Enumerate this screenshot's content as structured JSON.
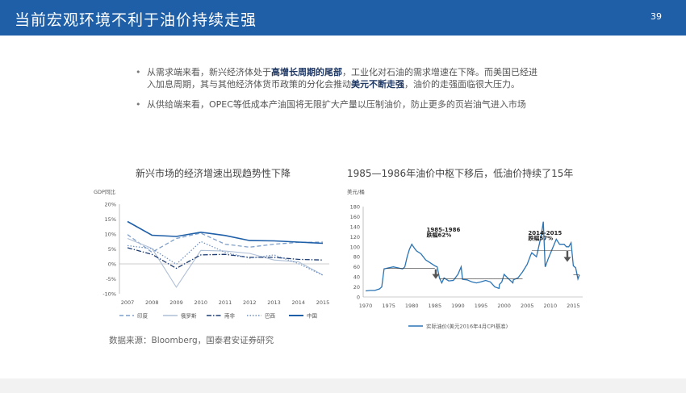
{
  "header": {
    "title": "当前宏观环境不利于油价持续走强",
    "page_number": "39"
  },
  "bullets": [
    {
      "parts": [
        {
          "text": "从需求端来看，新兴经济体处于",
          "bold": false
        },
        {
          "text": "高增长周期的尾部",
          "bold": true
        },
        {
          "text": "，工业化对石油的需求增速在下降。而美国已经进入加息周期，其与其他经济体货币政策的分化会推动",
          "bold": false
        },
        {
          "text": "美元不断走强",
          "bold": true
        },
        {
          "text": "，油价的走强面临很大压力。",
          "bold": false
        }
      ]
    },
    {
      "parts": [
        {
          "text": "从供给端来看，OPEC等低成本产油国将无限扩大产量以压制油价，防止更多的页岩油气进入市场",
          "bold": false
        }
      ]
    }
  ],
  "source_note": "数据来源：Bloomberg，国泰君安证券研究",
  "colors": {
    "header": "#1f5fa8",
    "primary": "#1f5fa8",
    "secondary": "#7f9fc9",
    "oil": "#2a74b5"
  },
  "chart_data": [
    {
      "type": "line",
      "title": "新兴市场的经济增速出现趋势性下降",
      "ylabel": "GDP同比",
      "x": [
        "2007",
        "2008",
        "2009",
        "2010",
        "2011",
        "2012",
        "2013",
        "2014",
        "2015"
      ],
      "y_ticks": [
        "20%",
        "15%",
        "10%",
        "5%",
        "0%",
        "-5%",
        "-10%"
      ],
      "ylim": [
        -10,
        20
      ],
      "grid": false,
      "legend_position": "bottom",
      "series": [
        {
          "name": "印度",
          "dash": "dash",
          "values": [
            9.8,
            3.9,
            8.5,
            10.3,
            6.6,
            5.6,
            6.6,
            7.2,
            7.3
          ]
        },
        {
          "name": "俄罗斯",
          "dash": "solid-light",
          "values": [
            8.5,
            5.2,
            -7.8,
            4.5,
            4.3,
            3.5,
            1.3,
            0.7,
            -3.7
          ]
        },
        {
          "name": "南非",
          "dash": "dashdot",
          "values": [
            5.4,
            3.2,
            -1.5,
            3.0,
            3.2,
            2.2,
            2.2,
            1.5,
            1.3
          ]
        },
        {
          "name": "巴西",
          "dash": "dot",
          "values": [
            6.1,
            5.1,
            -0.1,
            7.5,
            3.9,
            1.9,
            3.0,
            0.1,
            -3.8
          ]
        },
        {
          "name": "中国",
          "dash": "solid",
          "values": [
            14.2,
            9.6,
            9.2,
            10.6,
            9.5,
            7.8,
            7.7,
            7.3,
            6.9
          ]
        }
      ]
    },
    {
      "type": "line",
      "title": "1985—1986年油价中枢下移后，低油价持续了15年",
      "ylabel": "美元/桶",
      "y_ticks": [
        "180",
        "160",
        "140",
        "120",
        "100",
        "80",
        "60",
        "40",
        "20",
        "0"
      ],
      "x_ticks": [
        "1970",
        "1975",
        "1980",
        "1985",
        "1990",
        "1995",
        "2000",
        "2005",
        "2010",
        "2015"
      ],
      "xlim": [
        1970,
        2016.5
      ],
      "ylim": [
        0,
        180
      ],
      "legend_position": "bottom",
      "series": [
        {
          "name": "实际油价(美元2016年4月CPI基准)",
          "x": [
            1970,
            1971,
            1972,
            1973,
            1973.5,
            1974,
            1975,
            1976,
            1977,
            1978,
            1978.5,
            1979,
            1979.5,
            1980,
            1980.5,
            1981,
            1982,
            1983,
            1984,
            1985,
            1985.5,
            1986,
            1986.5,
            1987,
            1988,
            1989,
            1990,
            1990.7,
            1991,
            1992,
            1993,
            1994,
            1995,
            1996,
            1997,
            1998,
            1998.9,
            1999,
            1999.5,
            2000,
            2001,
            2001.9,
            2002,
            2003,
            2004,
            2005,
            2005.7,
            2006,
            2007,
            2007.5,
            2008,
            2008.5,
            2008.9,
            2009,
            2009.5,
            2010,
            2011,
            2011.3,
            2012,
            2013,
            2013.5,
            2014,
            2014.5,
            2015,
            2015.5,
            2016,
            2016.3
          ],
          "y": [
            12,
            13,
            13,
            16,
            20,
            56,
            58,
            60,
            58,
            56,
            60,
            80,
            95,
            105,
            98,
            92,
            86,
            74,
            68,
            62,
            60,
            38,
            28,
            38,
            32,
            33,
            45,
            60,
            35,
            34,
            30,
            28,
            30,
            33,
            30,
            20,
            17,
            25,
            30,
            45,
            36,
            28,
            34,
            38,
            50,
            65,
            82,
            88,
            80,
            100,
            120,
            150,
            60,
            62,
            75,
            86,
            108,
            115,
            105,
            105,
            100,
            100,
            108,
            62,
            58,
            36,
            44
          ]
        }
      ],
      "annotations": [
        {
          "text": "1985-1986",
          "x": 1983.2,
          "y": 130
        },
        {
          "text": "跌幅62%",
          "x": 1983.2,
          "y": 120
        },
        {
          "text": "2014-2015",
          "x": 2005.2,
          "y": 124
        },
        {
          "text": "跌幅57%",
          "x": 2005.2,
          "y": 113
        }
      ],
      "reference_lines": [
        {
          "x0": 1974.5,
          "x1": 1985,
          "y": 57
        },
        {
          "x0": 1986,
          "x1": 2004,
          "y": 36
        },
        {
          "x0": 2006,
          "x1": 2014.5,
          "y": 92
        },
        {
          "x0": 2015,
          "x1": 2016.3,
          "y": 44
        }
      ],
      "arrows": [
        {
          "x": 1985.2,
          "y_from": 55,
          "y_to": 36
        },
        {
          "x": 2013.7,
          "y_from": 92,
          "y_to": 70
        }
      ]
    }
  ]
}
